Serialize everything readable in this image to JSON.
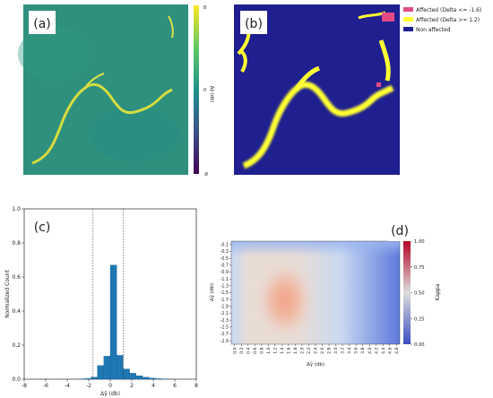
{
  "colors": {
    "viridis_low": "#440154",
    "viridis_mid": "#2a9c8a",
    "viridis_high": "#fde725",
    "non_affected": "#1f1f8f",
    "affected_pos": "#ffff33",
    "affected_neg": "#e34a85",
    "hist_bar": "#1f77b4",
    "coolwarm_low": "#3b4cc0",
    "coolwarm_mid": "#dddddd",
    "coolwarm_high": "#b40426"
  },
  "panels": {
    "a": {
      "label": "(a)",
      "colorbar": {
        "ticks": [
          "8",
          "0",
          "-8"
        ],
        "label": "Δγ̂ (db)"
      }
    },
    "b": {
      "label": "(b)",
      "legend": [
        {
          "name": "Affected (Delta <= -1.6)",
          "color": "#e34a85"
        },
        {
          "name": "Affected (Delta >= 1.2)",
          "color": "#ffff33"
        },
        {
          "name": "Non affected",
          "color": "#1f1f8f"
        }
      ]
    },
    "c": {
      "label": "(c)"
    },
    "d": {
      "label": "(d)"
    }
  },
  "chart_data": [
    {
      "panel": "c",
      "type": "bar",
      "xlabel": "Δγ̂ (db)",
      "ylabel": "Normalized Count",
      "xlim": [
        -8,
        8
      ],
      "ylim": [
        0,
        1.0
      ],
      "x_ticks": [
        "-8",
        "-6",
        "-4",
        "-2",
        "0",
        "2",
        "4",
        "6",
        "8"
      ],
      "y_ticks": [
        "0.0",
        "0.2",
        "0.4",
        "0.6",
        "0.8",
        "1.0"
      ],
      "bin_width": 0.6,
      "bin_centers": [
        -2.7,
        -2.1,
        -1.5,
        -0.9,
        -0.3,
        0.3,
        0.9,
        1.5,
        2.1,
        2.7,
        3.3,
        3.9,
        4.5,
        5.1
      ],
      "values": [
        0.002,
        0.004,
        0.012,
        0.08,
        0.135,
        0.67,
        0.14,
        0.06,
        0.035,
        0.02,
        0.012,
        0.006,
        0.003,
        0.001
      ],
      "thresholds": [
        -1.6,
        1.2
      ]
    },
    {
      "panel": "d",
      "type": "heatmap",
      "xlabel": "Δγ̂ (db)",
      "ylabel": "Δγ̂ (db)",
      "x_ticks": [
        "0.0",
        "0.2",
        "0.4",
        "0.6",
        "0.8",
        "1.0",
        "1.2",
        "1.4",
        "1.6",
        "1.8",
        "2.0",
        "2.2",
        "2.4",
        "2.6",
        "2.8",
        "3.0",
        "3.2",
        "3.4",
        "3.6",
        "3.8",
        "4.0",
        "4.2",
        "4.4",
        "4.6",
        "4.8"
      ],
      "y_ticks": [
        "-0.1",
        "-0.3",
        "-0.5",
        "-0.7",
        "-0.9",
        "-1.1",
        "-1.3",
        "-1.5",
        "-1.7",
        "-1.9",
        "-2.1",
        "-2.3",
        "-2.5",
        "-2.7",
        "-2.9"
      ],
      "colorbar": {
        "label": "Kappa",
        "ticks": [
          "1.00",
          "0.75",
          "0.50",
          "0.25",
          "0.00"
        ],
        "range": [
          0,
          1
        ]
      },
      "peak": {
        "x": 1.2,
        "y": -1.6,
        "value": 0.74
      }
    }
  ]
}
